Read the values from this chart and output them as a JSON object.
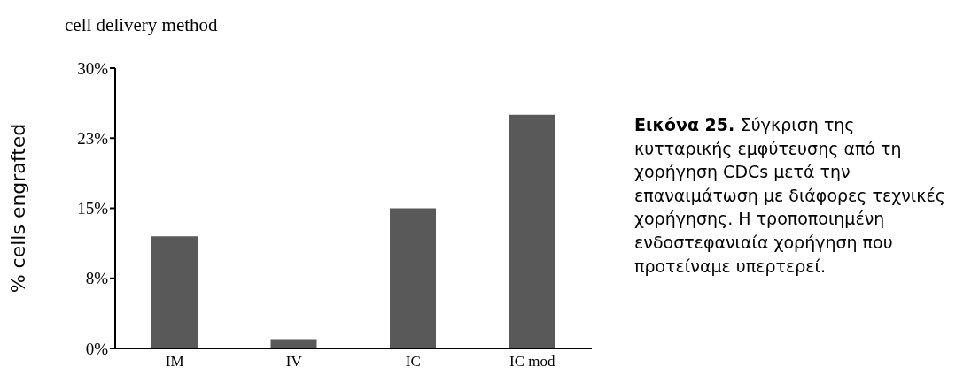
{
  "chart_data": {
    "type": "bar",
    "title": "cell delivery method",
    "ylabel": "% cells engrafted",
    "categories": [
      "IM",
      "IV",
      "IC",
      "IC mod"
    ],
    "values": [
      12,
      1,
      15,
      25
    ],
    "color": "#595959",
    "ylim": [
      0,
      30
    ],
    "yticks": [
      {
        "value": 0,
        "label": "0%"
      },
      {
        "value": 7.5,
        "label": "8%"
      },
      {
        "value": 15,
        "label": "15%"
      },
      {
        "value": 22.5,
        "label": "23%"
      },
      {
        "value": 30,
        "label": "30%"
      }
    ],
    "grid": false,
    "legend": false,
    "annotations": [
      "Εικόνα 25.",
      "Σύγκριση της κυτταρικής εμφύτευσης από τη χορήγηση CDCs μετά την επαναιμάτωση με διάφορες τεχνικές χορήγησης. Η τροποποιημένη ενδοστεφανιαία χορήγηση που προτείναμε υπερτερεί."
    ]
  }
}
